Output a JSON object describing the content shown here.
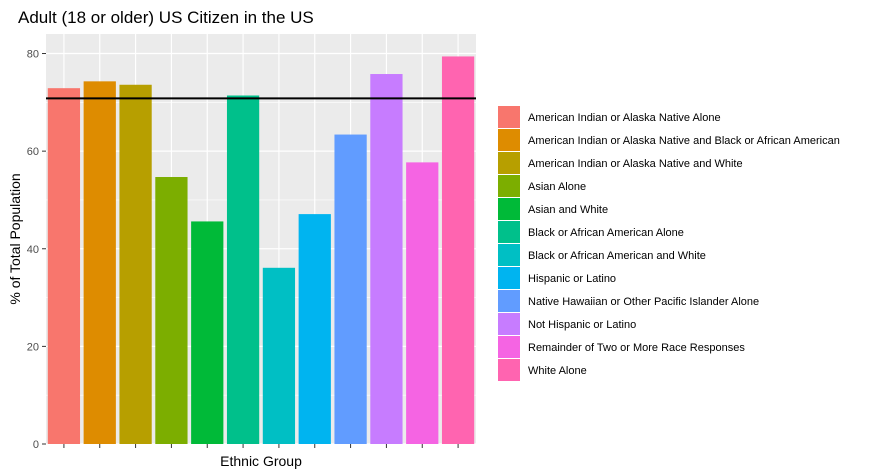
{
  "chart_data": {
    "type": "bar",
    "title": "Adult (18 or older) US Citizen in the US",
    "xlabel": "Ethnic Group",
    "ylabel": "% of Total Population",
    "ylim": [
      0,
      84
    ],
    "yticks": [
      0,
      20,
      40,
      60,
      80
    ],
    "grid": true,
    "legend_position": "right",
    "reference_line": 70.8,
    "categories": [
      "American Indian or Alaska Native Alone",
      "American Indian or Alaska Native and Black or African American",
      "American Indian or Alaska Native and White",
      "Asian Alone",
      "Asian and White",
      "Black or African American Alone",
      "Black or African American and White",
      "Hispanic or Latino",
      "Native Hawaiian or Other Pacific Islander Alone",
      "Not Hispanic or Latino",
      "Remainder of Two or More Race Responses",
      "White Alone"
    ],
    "values": [
      72.9,
      74.3,
      73.6,
      54.7,
      45.6,
      71.4,
      36.1,
      47.1,
      63.4,
      75.8,
      57.7,
      79.4
    ],
    "colors": [
      "#F8766D",
      "#DE8C00",
      "#B79F00",
      "#7CAE00",
      "#00BA38",
      "#00C08B",
      "#00BFC4",
      "#00B4F0",
      "#619CFF",
      "#C77CFF",
      "#F564E3",
      "#FF64B0"
    ]
  }
}
